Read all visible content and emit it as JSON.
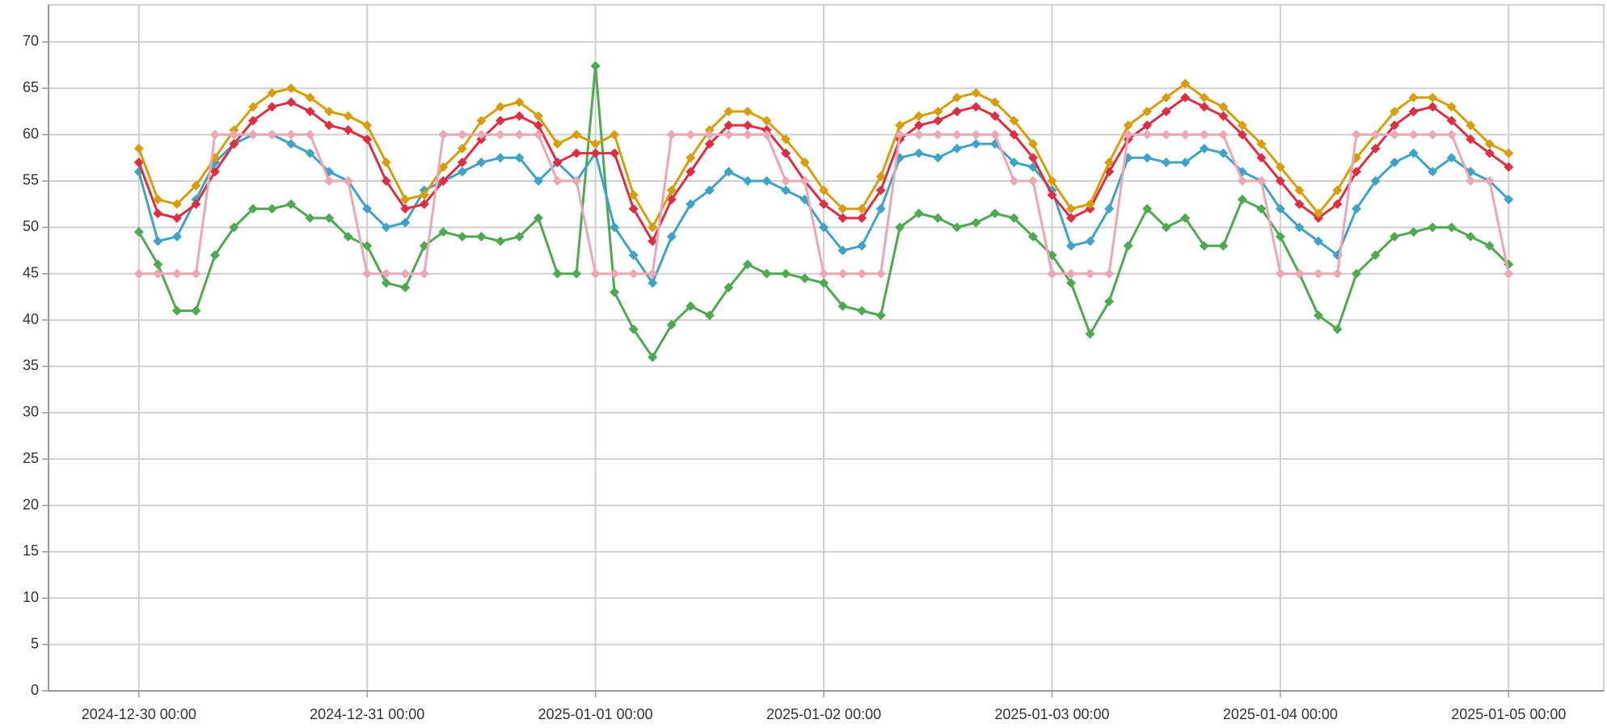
{
  "chart_data": {
    "type": "line",
    "xlim": [
      "2024-12-29 14:30",
      "2025-01-05 10:00"
    ],
    "xticks": [
      "2024-12-30 00:00",
      "2024-12-31 00:00",
      "2025-01-01 00:00",
      "2025-01-02 00:00",
      "2025-01-03 00:00",
      "2025-01-04 00:00",
      "2025-01-05 00:00"
    ],
    "ylim": [
      0,
      74
    ],
    "yticks": [
      0,
      5,
      10,
      15,
      20,
      25,
      30,
      35,
      40,
      45,
      50,
      55,
      60,
      65,
      70
    ],
    "grid": true,
    "x": [
      "2024-12-30 00:00",
      "2024-12-30 02:00",
      "2024-12-30 04:00",
      "2024-12-30 06:00",
      "2024-12-30 08:00",
      "2024-12-30 10:00",
      "2024-12-30 12:00",
      "2024-12-30 14:00",
      "2024-12-30 16:00",
      "2024-12-30 18:00",
      "2024-12-30 20:00",
      "2024-12-30 22:00",
      "2024-12-31 00:00",
      "2024-12-31 02:00",
      "2024-12-31 04:00",
      "2024-12-31 06:00",
      "2024-12-31 08:00",
      "2024-12-31 10:00",
      "2024-12-31 12:00",
      "2024-12-31 14:00",
      "2024-12-31 16:00",
      "2024-12-31 18:00",
      "2024-12-31 20:00",
      "2024-12-31 22:00",
      "2025-01-01 00:00",
      "2025-01-01 02:00",
      "2025-01-01 04:00",
      "2025-01-01 06:00",
      "2025-01-01 08:00",
      "2025-01-01 10:00",
      "2025-01-01 12:00",
      "2025-01-01 14:00",
      "2025-01-01 16:00",
      "2025-01-01 18:00",
      "2025-01-01 20:00",
      "2025-01-01 22:00",
      "2025-01-02 00:00",
      "2025-01-02 02:00",
      "2025-01-02 04:00",
      "2025-01-02 06:00",
      "2025-01-02 08:00",
      "2025-01-02 10:00",
      "2025-01-02 12:00",
      "2025-01-02 14:00",
      "2025-01-02 16:00",
      "2025-01-02 18:00",
      "2025-01-02 20:00",
      "2025-01-02 22:00",
      "2025-01-03 00:00",
      "2025-01-03 02:00",
      "2025-01-03 04:00",
      "2025-01-03 06:00",
      "2025-01-03 08:00",
      "2025-01-03 10:00",
      "2025-01-03 12:00",
      "2025-01-03 14:00",
      "2025-01-03 16:00",
      "2025-01-03 18:00",
      "2025-01-03 20:00",
      "2025-01-03 22:00",
      "2025-01-04 00:00",
      "2025-01-04 02:00",
      "2025-01-04 04:00",
      "2025-01-04 06:00",
      "2025-01-04 08:00",
      "2025-01-04 10:00",
      "2025-01-04 12:00",
      "2025-01-04 14:00",
      "2025-01-04 16:00",
      "2025-01-04 18:00",
      "2025-01-04 20:00",
      "2025-01-04 22:00",
      "2025-01-05 00:00"
    ],
    "series": [
      {
        "color": "#4ea952",
        "values": [
          49.5,
          46,
          41,
          41,
          47,
          50,
          52,
          52,
          52.5,
          51,
          51,
          49,
          48,
          44,
          43.5,
          48,
          49.5,
          49,
          49,
          48.5,
          49,
          51,
          45,
          45,
          67.4,
          43,
          39,
          36,
          39.5,
          41.5,
          40.5,
          43.5,
          46,
          45,
          45,
          44.5,
          44,
          41.5,
          41,
          40.5,
          50,
          51.5,
          51,
          50,
          50.5,
          51.5,
          51,
          49,
          47,
          44,
          38.5,
          42,
          48,
          52,
          50,
          51,
          48,
          48,
          53,
          52,
          49,
          45,
          40.5,
          39,
          45,
          47,
          49,
          49.5,
          50,
          50,
          49,
          48,
          46
        ]
      },
      {
        "color": "#3fa3c6",
        "values": [
          56,
          48.5,
          49,
          53,
          57,
          59,
          60,
          60,
          59,
          58,
          56,
          55,
          52,
          50,
          50.5,
          54,
          55,
          56,
          57,
          57.5,
          57.5,
          55,
          57,
          55,
          58,
          50,
          47,
          44,
          49,
          52.5,
          54,
          56,
          55,
          55,
          54,
          53,
          50,
          47.5,
          48,
          52,
          57.5,
          58,
          57.5,
          58.5,
          59,
          59,
          57,
          56.5,
          54,
          48,
          48.5,
          52,
          57.5,
          57.5,
          57,
          57,
          58.5,
          58,
          56,
          55,
          52,
          50,
          48.5,
          47,
          52,
          55,
          57,
          58,
          56,
          57.5,
          56,
          55,
          53
        ]
      },
      {
        "color": "#dc2f45",
        "values": [
          57,
          51.5,
          51,
          52.5,
          56,
          59,
          61.5,
          63,
          63.5,
          62.5,
          61,
          60.5,
          59.5,
          55,
          52,
          52.5,
          55,
          57,
          59.5,
          61.5,
          62,
          61,
          57,
          58,
          58,
          58,
          52,
          48.5,
          53,
          56,
          59,
          61,
          61,
          60.5,
          58,
          55,
          52.5,
          51,
          51,
          54,
          59.5,
          61,
          61.5,
          62.5,
          63,
          62,
          60,
          57.5,
          53.5,
          51,
          52,
          56,
          59.5,
          61,
          62.5,
          64,
          63,
          62,
          60,
          57.5,
          55,
          52.5,
          51,
          52.5,
          56,
          58.5,
          61,
          62.5,
          63,
          61.5,
          59.5,
          58,
          56.5
        ]
      },
      {
        "color": "#d69e0a",
        "values": [
          58.5,
          53,
          52.5,
          54.5,
          57.5,
          60.5,
          63,
          64.5,
          65,
          64,
          62.5,
          62,
          61,
          57,
          53,
          53.5,
          56.5,
          58.5,
          61.5,
          63,
          63.5,
          62,
          59,
          60,
          59,
          60,
          53.5,
          50,
          54,
          57.5,
          60.5,
          62.5,
          62.5,
          61.5,
          59.5,
          57,
          54,
          52,
          52,
          55.5,
          61,
          62,
          62.5,
          64,
          64.5,
          63.5,
          61.5,
          59,
          55,
          52,
          52.5,
          57,
          61,
          62.5,
          64,
          65.5,
          64,
          63,
          61,
          59,
          56.5,
          54,
          51.5,
          54,
          57.5,
          60,
          62.5,
          64,
          64,
          63,
          61,
          59,
          58
        ]
      },
      {
        "color": "#eba8b4",
        "values": [
          45,
          45,
          45,
          45,
          60,
          60,
          60,
          60,
          60,
          60,
          55,
          55,
          45,
          45,
          45,
          45,
          60,
          60,
          60,
          60,
          60,
          60,
          55,
          55,
          45,
          45,
          45,
          45,
          60,
          60,
          60,
          60,
          60,
          60,
          55,
          55,
          45,
          45,
          45,
          45,
          60,
          60,
          60,
          60,
          60,
          60,
          55,
          55,
          45,
          45,
          45,
          45,
          60,
          60,
          60,
          60,
          60,
          60,
          55,
          55,
          45,
          45,
          45,
          45,
          60,
          60,
          60,
          60,
          60,
          60,
          55,
          55,
          45
        ]
      }
    ]
  }
}
